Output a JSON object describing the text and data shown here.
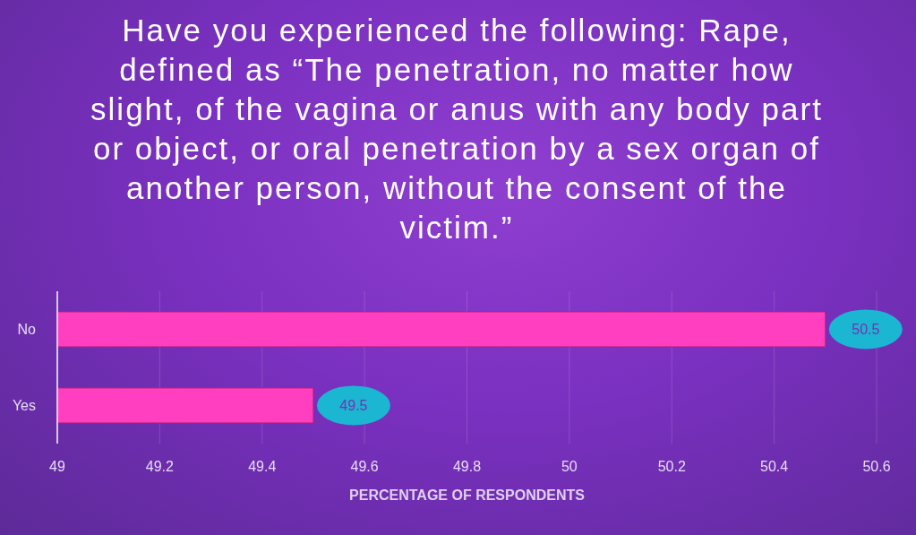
{
  "chart_data": {
    "type": "bar",
    "orientation": "horizontal",
    "title": "Have you experienced the following: Rape, defined as  “The penetration, no matter how slight, of the vagina or anus with any body part or object, or oral penetration by a sex organ of another person, without the consent of the victim.”",
    "xlabel": "PERCENTAGE OF RESPONDENTS",
    "categories": [
      "No",
      "Yes"
    ],
    "values": [
      50.5,
      49.5
    ],
    "color": "#ff3fbf",
    "xlim": [
      49,
      50.6
    ],
    "xticks": [
      49,
      49.2,
      49.4,
      49.6,
      49.8,
      50,
      50.2,
      50.4,
      50.6
    ],
    "grid": "x",
    "data_labels": true,
    "legend": false
  }
}
